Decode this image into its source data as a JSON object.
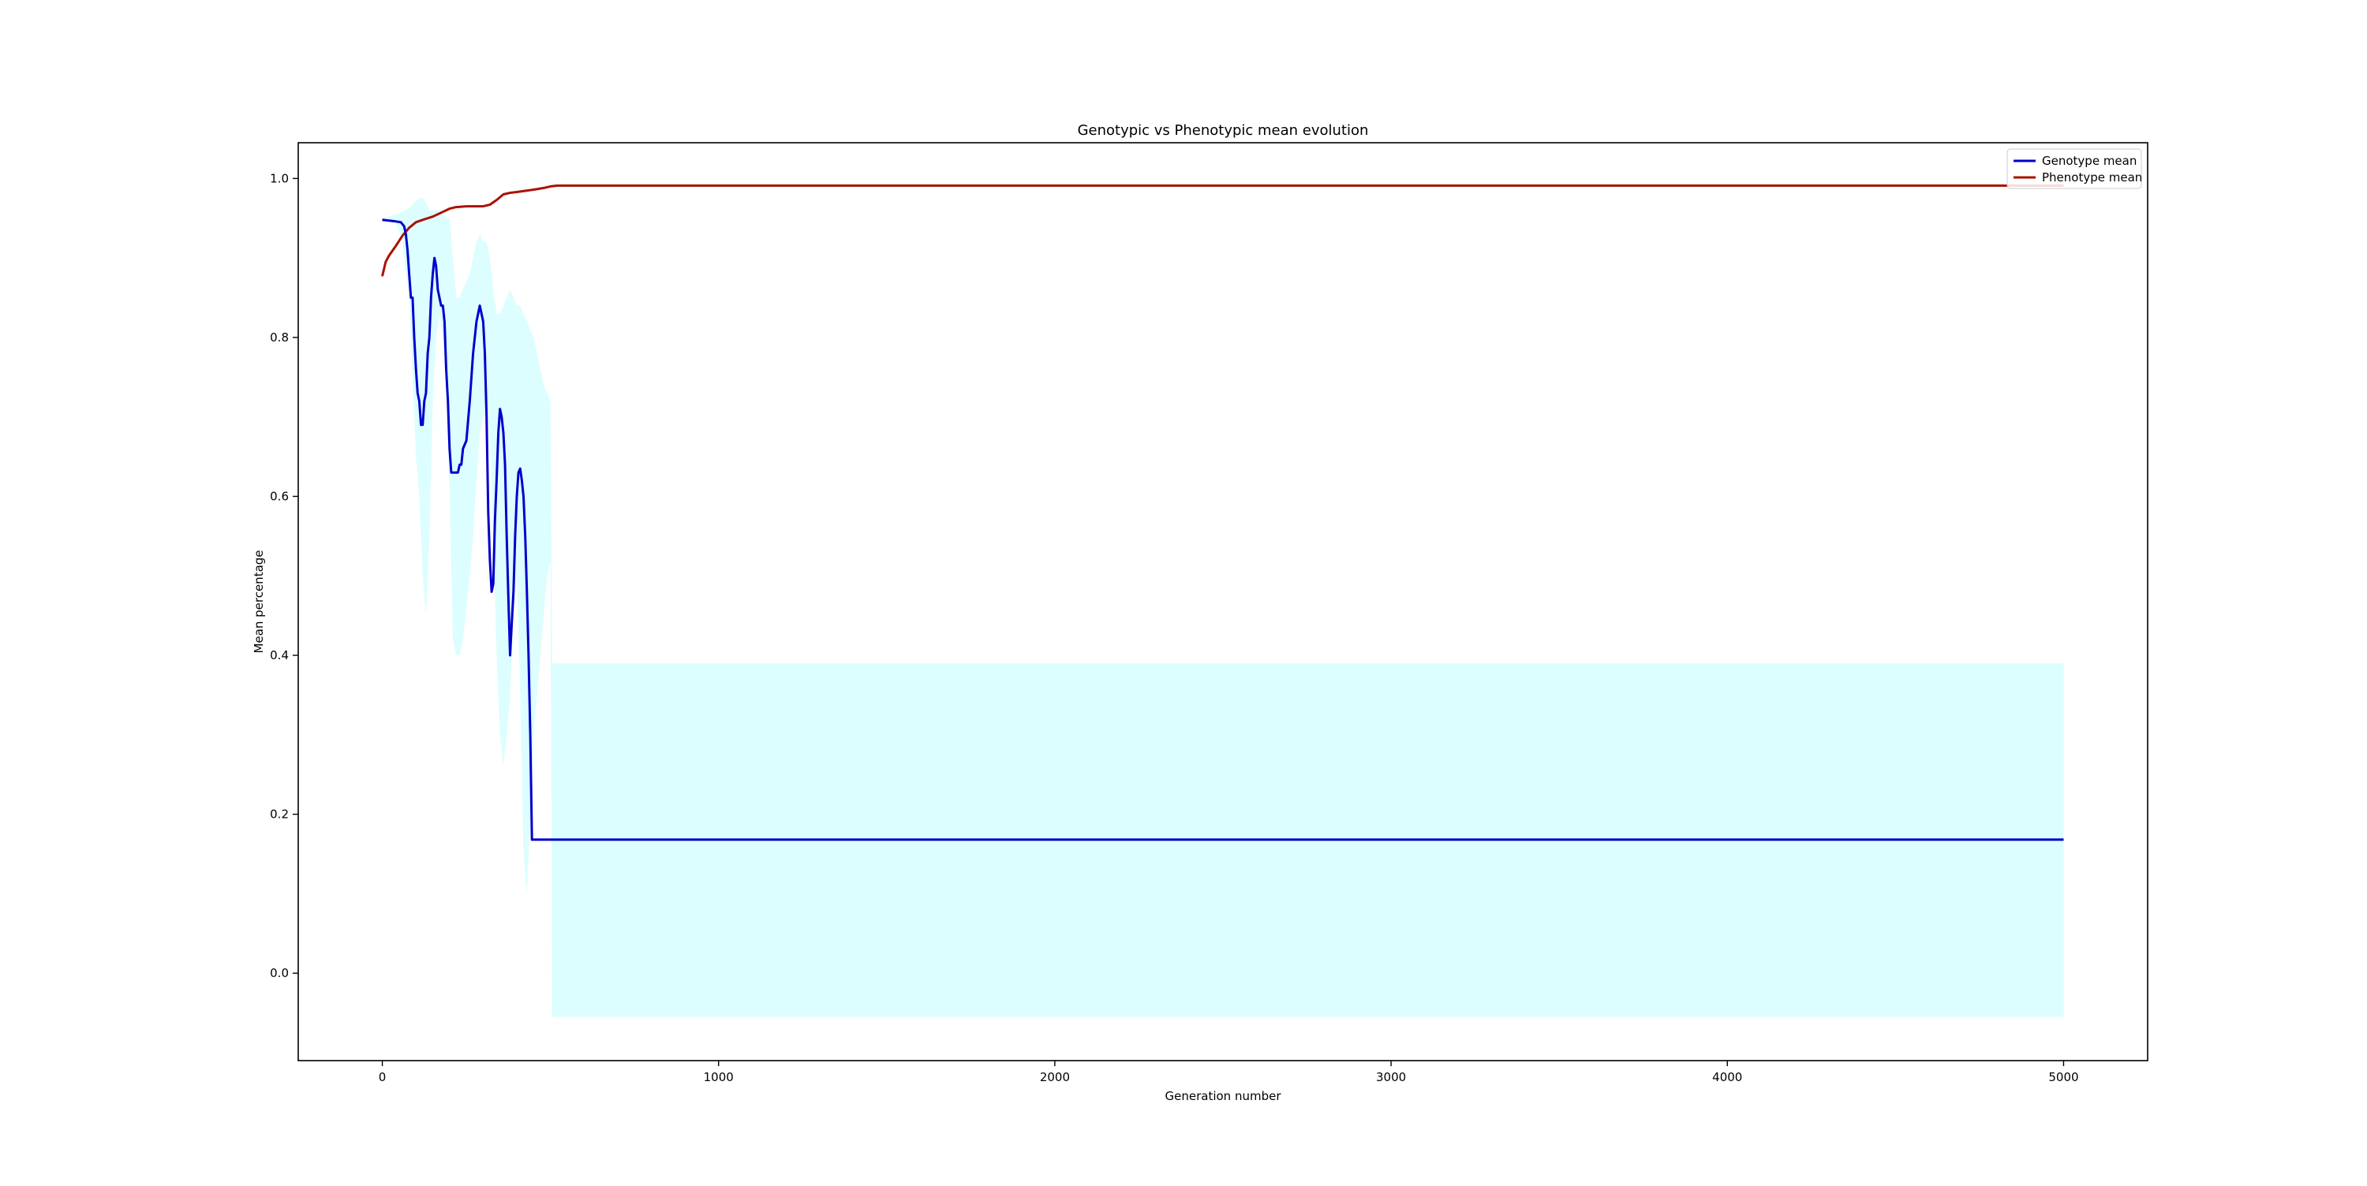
{
  "chart_data": {
    "type": "line",
    "title": "Genotypic vs Phenotypic mean evolution",
    "xlabel": "Generation number",
    "ylabel": "Mean percentage",
    "xlim": [
      -250,
      5250
    ],
    "ylim": [
      -0.11,
      1.045
    ],
    "xticks": [
      0,
      1000,
      2000,
      3000,
      4000,
      5000
    ],
    "xtick_labels": [
      "0",
      "1000",
      "2000",
      "3000",
      "4000",
      "5000"
    ],
    "yticks": [
      0.0,
      0.2,
      0.4,
      0.6,
      0.8,
      1.0
    ],
    "ytick_labels": [
      "0.0",
      "0.2",
      "0.4",
      "0.6",
      "0.8",
      "1.0"
    ],
    "grid": false,
    "legend_position": "top-right",
    "colors": {
      "genotype": "#0000cc",
      "phenotype": "#aa1100",
      "band": "#dcfefe",
      "axes": "#000000"
    },
    "series": [
      {
        "name": "Genotype mean",
        "color": "#0000cc",
        "x": [
          0,
          20,
          40,
          55,
          65,
          70,
          75,
          80,
          85,
          90,
          95,
          100,
          105,
          110,
          115,
          120,
          125,
          130,
          135,
          140,
          145,
          150,
          155,
          160,
          165,
          170,
          175,
          180,
          185,
          190,
          195,
          200,
          205,
          210,
          215,
          220,
          225,
          230,
          235,
          240,
          250,
          260,
          270,
          280,
          290,
          300,
          305,
          310,
          315,
          320,
          325,
          330,
          335,
          340,
          345,
          350,
          355,
          360,
          365,
          370,
          375,
          380,
          385,
          390,
          395,
          400,
          405,
          410,
          415,
          420,
          425,
          430,
          435,
          440,
          445,
          450,
          455,
          460,
          465,
          470,
          475,
          480,
          485,
          490,
          495,
          500,
          505,
          510,
          520,
          600,
          1000,
          2000,
          3000,
          4000,
          5000
        ],
        "y": [
          0.948,
          0.947,
          0.946,
          0.945,
          0.94,
          0.93,
          0.91,
          0.88,
          0.85,
          0.85,
          0.8,
          0.76,
          0.73,
          0.72,
          0.69,
          0.69,
          0.72,
          0.73,
          0.78,
          0.8,
          0.85,
          0.88,
          0.9,
          0.89,
          0.86,
          0.85,
          0.84,
          0.84,
          0.82,
          0.76,
          0.72,
          0.66,
          0.63,
          0.63,
          0.63,
          0.63,
          0.63,
          0.64,
          0.64,
          0.66,
          0.67,
          0.72,
          0.78,
          0.82,
          0.84,
          0.82,
          0.78,
          0.7,
          0.58,
          0.52,
          0.48,
          0.49,
          0.57,
          0.62,
          0.68,
          0.71,
          0.7,
          0.68,
          0.64,
          0.55,
          0.47,
          0.4,
          0.44,
          0.48,
          0.55,
          0.6,
          0.63,
          0.635,
          0.62,
          0.6,
          0.55,
          0.48,
          0.4,
          0.3,
          0.168,
          0.168,
          0.168,
          0.168,
          0.168,
          0.168,
          0.168,
          0.168,
          0.168,
          0.168,
          0.168,
          0.168,
          0.168,
          0.168,
          0.168,
          0.168,
          0.168,
          0.168,
          0.168,
          0.168,
          0.168
        ]
      },
      {
        "name": "Phenotype mean",
        "color": "#aa1100",
        "x": [
          0,
          10,
          20,
          40,
          60,
          80,
          100,
          120,
          150,
          180,
          200,
          220,
          250,
          280,
          300,
          320,
          340,
          360,
          380,
          400,
          450,
          480,
          500,
          520,
          600,
          1000,
          2000,
          3000,
          4000,
          5000
        ],
        "y": [
          0.877,
          0.895,
          0.903,
          0.915,
          0.928,
          0.938,
          0.945,
          0.948,
          0.952,
          0.958,
          0.962,
          0.964,
          0.965,
          0.965,
          0.965,
          0.967,
          0.973,
          0.98,
          0.982,
          0.983,
          0.986,
          0.988,
          0.99,
          0.991,
          0.991,
          0.991,
          0.991,
          0.991,
          0.991,
          0.991
        ]
      }
    ],
    "band": {
      "x": [
        0,
        20,
        40,
        60,
        80,
        90,
        100,
        110,
        120,
        130,
        140,
        150,
        160,
        170,
        180,
        190,
        200,
        210,
        220,
        230,
        240,
        250,
        260,
        270,
        280,
        290,
        300,
        310,
        320,
        330,
        340,
        350,
        360,
        370,
        380,
        390,
        400,
        410,
        420,
        430,
        440,
        450,
        460,
        470,
        480,
        490,
        500,
        505,
        510,
        520,
        600,
        1000,
        2000,
        3000,
        4000,
        5000
      ],
      "lower": [
        0.948,
        0.947,
        0.945,
        0.92,
        0.85,
        0.75,
        0.65,
        0.6,
        0.5,
        0.45,
        0.55,
        0.72,
        0.8,
        0.83,
        0.8,
        0.75,
        0.6,
        0.42,
        0.4,
        0.4,
        0.42,
        0.46,
        0.5,
        0.55,
        0.62,
        0.68,
        0.7,
        0.72,
        0.68,
        0.55,
        0.4,
        0.3,
        0.26,
        0.3,
        0.35,
        0.45,
        0.5,
        0.35,
        0.15,
        0.1,
        0.2,
        0.3,
        0.35,
        0.4,
        0.45,
        0.5,
        0.52,
        -0.055,
        -0.055,
        -0.055,
        -0.055,
        -0.055,
        -0.055,
        -0.055,
        -0.055,
        -0.055
      ],
      "upper": [
        0.95,
        0.952,
        0.955,
        0.958,
        0.963,
        0.968,
        0.972,
        0.975,
        0.975,
        0.97,
        0.96,
        0.96,
        0.96,
        0.96,
        0.955,
        0.95,
        0.95,
        0.9,
        0.85,
        0.85,
        0.86,
        0.87,
        0.88,
        0.9,
        0.92,
        0.93,
        0.92,
        0.92,
        0.9,
        0.86,
        0.83,
        0.83,
        0.84,
        0.85,
        0.86,
        0.85,
        0.84,
        0.84,
        0.83,
        0.82,
        0.81,
        0.8,
        0.78,
        0.76,
        0.74,
        0.73,
        0.72,
        0.39,
        0.39,
        0.39,
        0.39,
        0.39,
        0.39,
        0.39,
        0.39,
        0.39
      ]
    }
  }
}
